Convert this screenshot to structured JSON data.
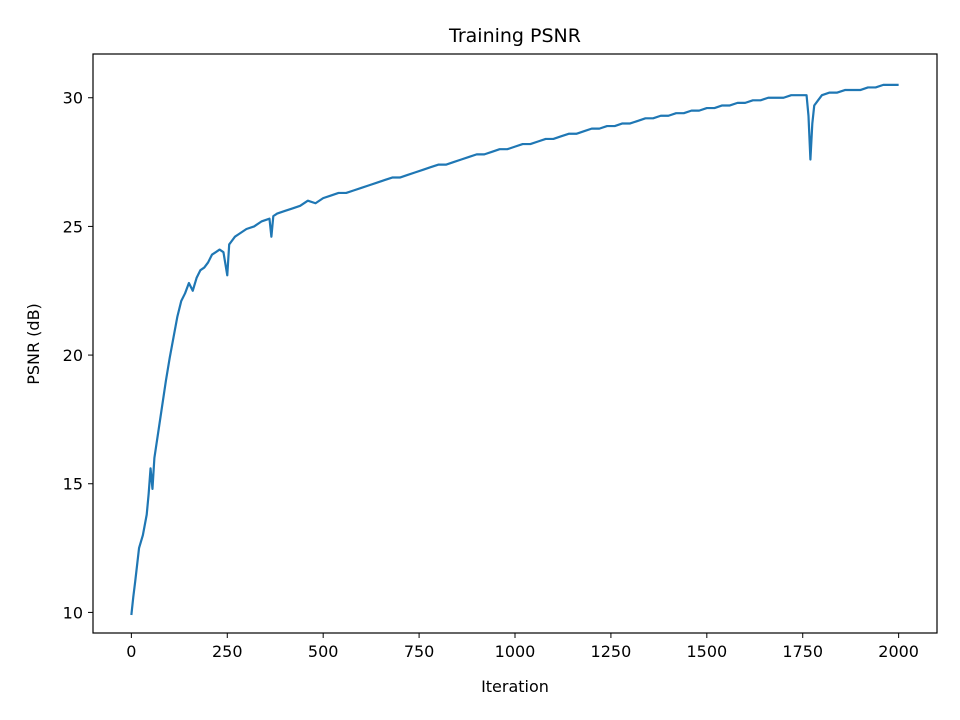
{
  "chart_data": {
    "type": "line",
    "title": "Training PSNR",
    "xlabel": "Iteration",
    "ylabel": "PSNR (dB)",
    "xlim": [
      -100,
      2100
    ],
    "ylim": [
      9.2,
      31.7
    ],
    "x_ticks": [
      0,
      250,
      500,
      750,
      1000,
      1250,
      1500,
      1750,
      2000
    ],
    "y_ticks": [
      10,
      15,
      20,
      25,
      30
    ],
    "grid": false,
    "legend": "none",
    "series": [
      {
        "color": "#1f77b4",
        "x": [
          0,
          5,
          10,
          20,
          30,
          40,
          45,
          50,
          55,
          60,
          70,
          80,
          90,
          100,
          110,
          120,
          130,
          140,
          150,
          160,
          170,
          180,
          190,
          200,
          210,
          220,
          230,
          240,
          250,
          255,
          260,
          270,
          280,
          300,
          320,
          340,
          360,
          365,
          370,
          380,
          400,
          420,
          440,
          460,
          480,
          500,
          520,
          540,
          560,
          580,
          600,
          620,
          640,
          660,
          680,
          700,
          720,
          740,
          760,
          780,
          800,
          820,
          840,
          860,
          880,
          900,
          920,
          940,
          960,
          980,
          1000,
          1020,
          1040,
          1060,
          1080,
          1100,
          1120,
          1140,
          1160,
          1180,
          1200,
          1220,
          1240,
          1260,
          1280,
          1300,
          1320,
          1340,
          1360,
          1380,
          1400,
          1420,
          1440,
          1460,
          1480,
          1500,
          1520,
          1540,
          1560,
          1580,
          1600,
          1620,
          1640,
          1660,
          1680,
          1700,
          1720,
          1740,
          1760,
          1765,
          1770,
          1775,
          1780,
          1790,
          1800,
          1820,
          1840,
          1860,
          1880,
          1900,
          1920,
          1940,
          1960,
          1980,
          2000
        ],
        "y": [
          9.9,
          10.6,
          11.2,
          12.5,
          13.0,
          13.8,
          14.6,
          15.6,
          14.8,
          16.0,
          17.0,
          18.0,
          19.0,
          19.9,
          20.7,
          21.5,
          22.1,
          22.4,
          22.8,
          22.5,
          23.0,
          23.3,
          23.4,
          23.6,
          23.9,
          24.0,
          24.1,
          24.0,
          23.1,
          24.3,
          24.4,
          24.6,
          24.7,
          24.9,
          25.0,
          25.2,
          25.3,
          24.6,
          25.4,
          25.5,
          25.6,
          25.7,
          25.8,
          26.0,
          25.9,
          26.1,
          26.2,
          26.3,
          26.3,
          26.4,
          26.5,
          26.6,
          26.7,
          26.8,
          26.9,
          26.9,
          27.0,
          27.1,
          27.2,
          27.3,
          27.4,
          27.4,
          27.5,
          27.6,
          27.7,
          27.8,
          27.8,
          27.9,
          28.0,
          28.0,
          28.1,
          28.2,
          28.2,
          28.3,
          28.4,
          28.4,
          28.5,
          28.6,
          28.6,
          28.7,
          28.8,
          28.8,
          28.9,
          28.9,
          29.0,
          29.0,
          29.1,
          29.2,
          29.2,
          29.3,
          29.3,
          29.4,
          29.4,
          29.5,
          29.5,
          29.6,
          29.6,
          29.7,
          29.7,
          29.8,
          29.8,
          29.9,
          29.9,
          30.0,
          30.0,
          30.0,
          30.1,
          30.1,
          30.1,
          29.3,
          27.6,
          29.0,
          29.7,
          29.9,
          30.1,
          30.2,
          30.2,
          30.3,
          30.3,
          30.3,
          30.4,
          30.4,
          30.5,
          30.5,
          30.5
        ]
      }
    ]
  }
}
